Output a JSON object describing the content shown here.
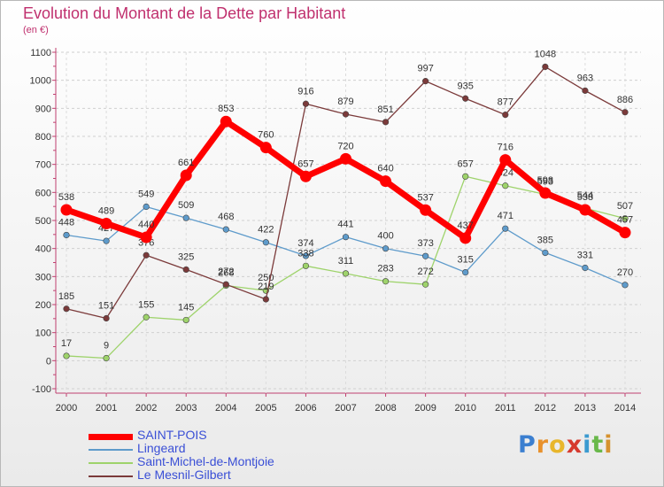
{
  "chart_data": {
    "type": "line",
    "title": "Evolution du Montant de la Dette par Habitant",
    "subtitle": "(en €)",
    "xlabel": "",
    "ylabel": "",
    "ylim": [
      -100,
      1100
    ],
    "yticks": [
      -100,
      0,
      100,
      200,
      300,
      400,
      500,
      600,
      700,
      800,
      900,
      1000,
      1100
    ],
    "categories": [
      "2000",
      "2001",
      "2002",
      "2003",
      "2004",
      "2005",
      "2006",
      "2007",
      "2008",
      "2009",
      "2010",
      "2011",
      "2012",
      "2013",
      "2014"
    ],
    "grid": true,
    "legend_position": "bottom-left",
    "series": [
      {
        "name": "Lingeard",
        "color": "#5e9bcb",
        "values": [
          448,
          427,
          549,
          509,
          468,
          422,
          374,
          441,
          400,
          373,
          315,
          471,
          385,
          331,
          270
        ]
      },
      {
        "name": "Saint-Michel-de-Montjoie",
        "color": "#9ed36b",
        "values": [
          17,
          9,
          155,
          145,
          268,
          250,
          338,
          311,
          283,
          272,
          657,
          624,
          593,
          544,
          507
        ]
      },
      {
        "name": "Le Mesnil-Gilbert",
        "color": "#7b3a3a",
        "values": [
          185,
          151,
          376,
          325,
          272,
          219,
          916,
          879,
          851,
          997,
          935,
          877,
          1048,
          963,
          886
        ]
      },
      {
        "name": "SAINT-POIS",
        "color": "#ff0000",
        "values": [
          538,
          489,
          440,
          661,
          853,
          760,
          657,
          720,
          640,
          537,
          437,
          716,
          598,
          538,
          457
        ]
      }
    ],
    "legend_order": [
      "SAINT-POIS",
      "Lingeard",
      "Saint-Michel-de-Montjoie",
      "Le Mesnil-Gilbert"
    ]
  },
  "logo": {
    "text": "Proxiti",
    "letters": [
      "P",
      "r",
      "o",
      "x",
      "i",
      "t",
      "i"
    ]
  }
}
